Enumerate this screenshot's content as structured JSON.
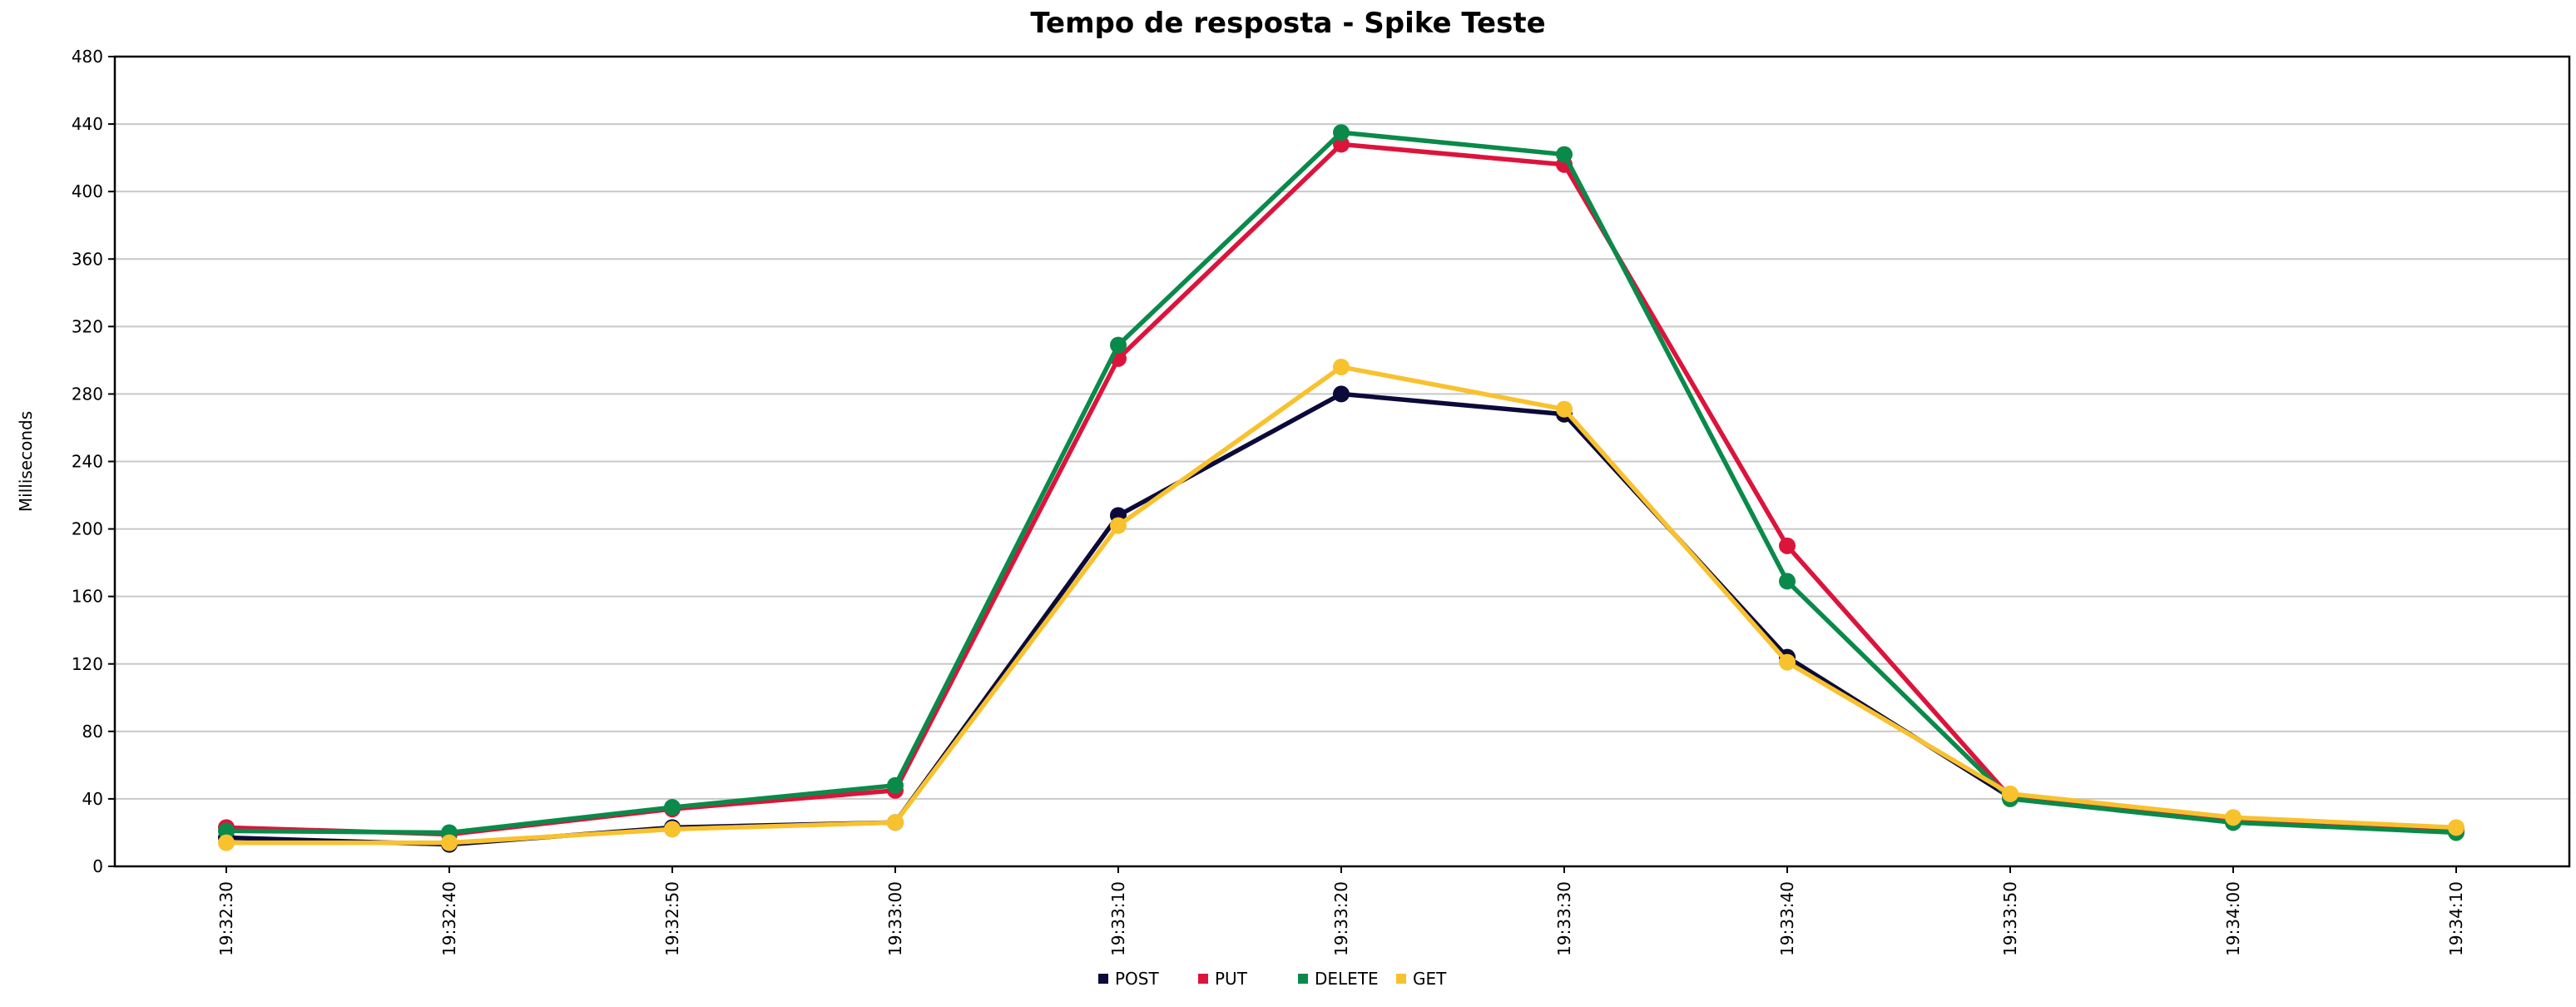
{
  "chart_data": {
    "type": "line",
    "title": "Tempo de resposta - Spike Teste",
    "xlabel": "",
    "ylabel": "Milliseconds",
    "ylim": [
      0,
      480
    ],
    "yticks": [
      0,
      40,
      80,
      120,
      160,
      200,
      240,
      280,
      320,
      360,
      400,
      440,
      480
    ],
    "grid": "horizontal",
    "legend_position": "bottom",
    "categories": [
      "19:32:30",
      "19:32:40",
      "19:32:50",
      "19:33:00",
      "19:33:10",
      "19:33:20",
      "19:33:30",
      "19:33:40",
      "19:33:50",
      "19:34:00",
      "19:34:10"
    ],
    "series": [
      {
        "name": "POST",
        "color": "#0b0a3a",
        "values": [
          17,
          13,
          23,
          26,
          208,
          280,
          268,
          124,
          41,
          26,
          21
        ]
      },
      {
        "name": "PUT",
        "color": "#dc143c",
        "values": [
          23,
          19,
          34,
          45,
          301,
          428,
          416,
          190,
          41,
          27,
          22
        ]
      },
      {
        "name": "DELETE",
        "color": "#0a8a4a",
        "values": [
          21,
          20,
          35,
          48,
          309,
          435,
          422,
          169,
          40,
          26,
          20
        ]
      },
      {
        "name": "GET",
        "color": "#f8c12e",
        "values": [
          14,
          14,
          22,
          26,
          202,
          296,
          271,
          121,
          43,
          29,
          23
        ]
      }
    ]
  }
}
